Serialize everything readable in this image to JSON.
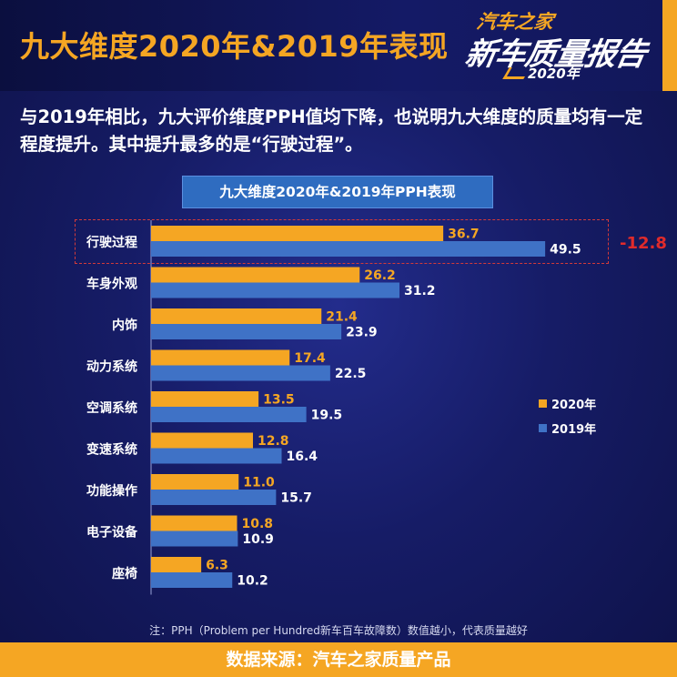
{
  "header": {
    "title": "九大维度2020年&2019年表现",
    "logo": {
      "line1": "汽车之家",
      "line2": "新车质量报告",
      "line3": "2020年"
    }
  },
  "subtitle": "与2019年相比，九大评价维度PPH值均下降，也说明九大维度的质量均有一定程度提升。其中提升最多的是“行驶过程”。",
  "colors": {
    "accent": "#f5a623",
    "bar2020": "#f5a623",
    "bar2019": "#3f72c6",
    "highlight": "#e02b2b",
    "background": "#161c66"
  },
  "chart_data": {
    "type": "bar",
    "orientation": "horizontal",
    "title": "九大维度2020年&2019年PPH表现",
    "categories": [
      "行驶过程",
      "车身外观",
      "内饰",
      "动力系统",
      "空调系统",
      "变速系统",
      "功能操作",
      "电子设备",
      "座椅"
    ],
    "series": [
      {
        "name": "2020年",
        "values": [
          36.7,
          26.2,
          21.4,
          17.4,
          13.5,
          12.8,
          11.0,
          10.8,
          6.3
        ]
      },
      {
        "name": "2019年",
        "values": [
          49.5,
          31.2,
          23.9,
          22.5,
          19.5,
          16.4,
          15.7,
          10.9,
          10.2
        ]
      }
    ],
    "xlim": [
      0,
      65
    ],
    "legend_position": "right",
    "annotation": {
      "category": "行驶过程",
      "text": "-12.8"
    }
  },
  "footer": {
    "note": "注：PPH（Problem per Hundred新车百车故障数）数值越小，代表质量越好",
    "source": "数据来源：汽车之家质量产品"
  }
}
